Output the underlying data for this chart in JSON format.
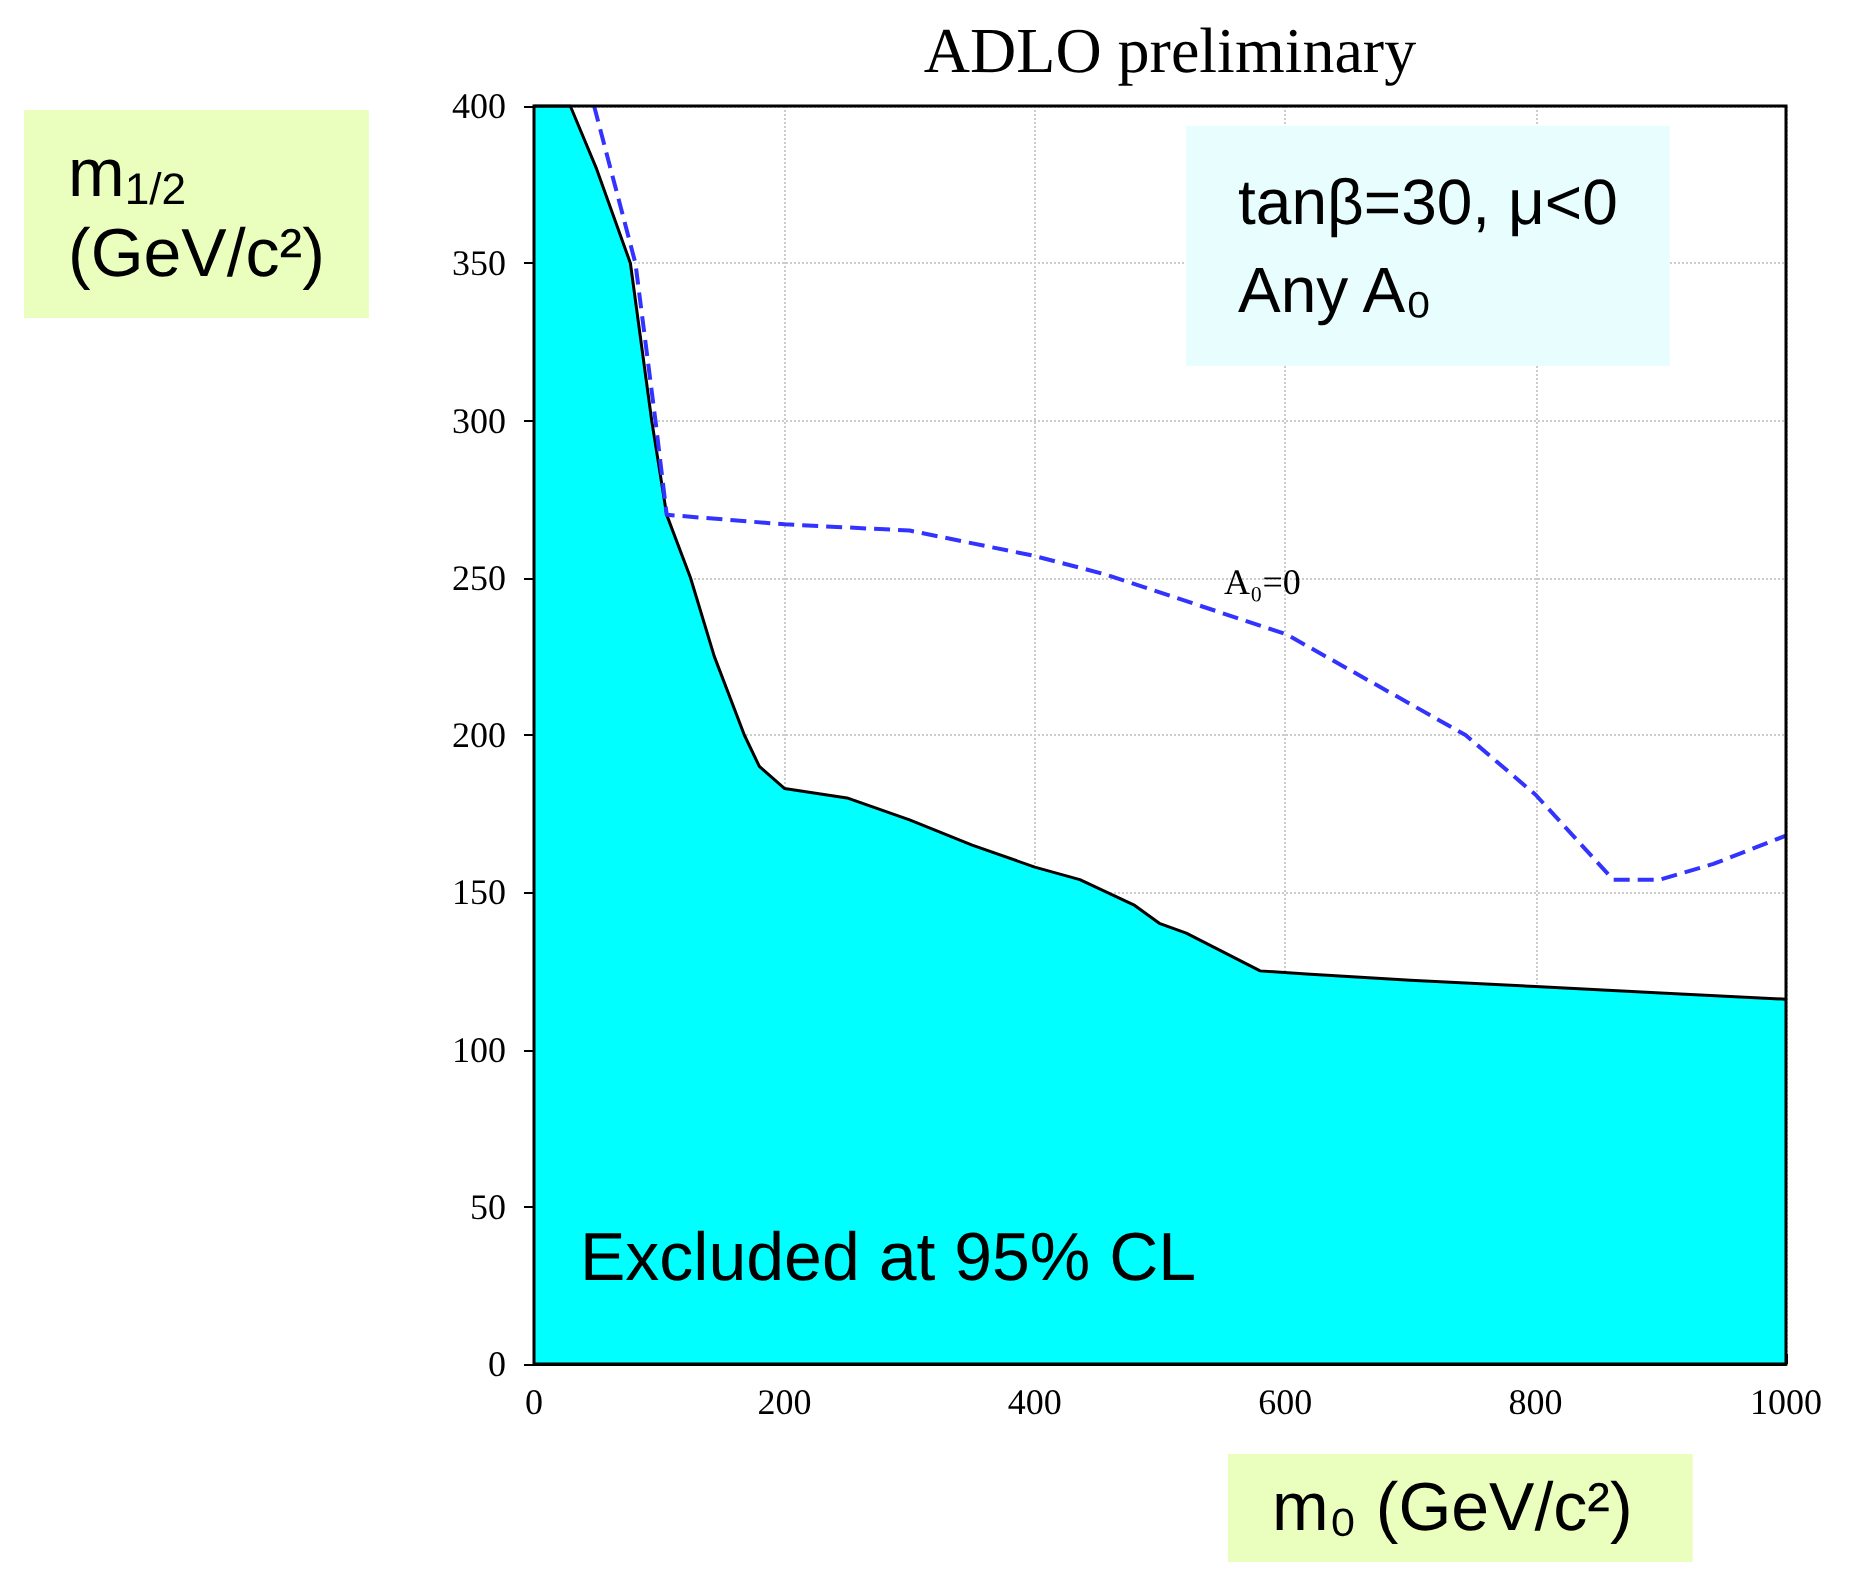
{
  "chart_data": {
    "type": "area",
    "title": "ADLO preliminary",
    "xlabel": "m₀ (GeV/c²)",
    "ylabel": "m$_{1/2}$ (GeV/c²)",
    "annotations": [
      "tanβ=30, μ<0",
      "Any A₀",
      "Excluded at 95% CL"
    ],
    "series": [
      {
        "color": "#00ffff",
        "x": [
          0,
          29,
          50,
          77,
          94,
          106,
          125,
          144,
          168,
          180,
          200,
          250,
          300,
          350,
          400,
          436,
          479,
          500,
          521,
          580,
          617,
          700,
          800,
          900,
          1000
        ],
        "values": [
          400,
          400,
          380,
          350,
          300,
          270,
          250,
          225,
          200,
          190,
          183,
          180,
          173,
          165,
          158,
          154,
          146,
          140,
          137,
          125,
          124,
          122,
          120,
          118,
          116
        ]
      },
      {
        "type": "line",
        "name": "A₀=0",
        "color": "#3333ff",
        "line_style": "dashed",
        "x": [
          48,
          81,
          97,
          106,
          200,
          300,
          399,
          457,
          601,
          744,
          800,
          862,
          899,
          942,
          1000
        ],
        "values": [
          400,
          350,
          300,
          270,
          267,
          265,
          257,
          251,
          232,
          200,
          181,
          154,
          154,
          159,
          168
        ]
      }
    ],
    "xlim": [
      0,
      1000
    ],
    "ylim": [
      0,
      400
    ],
    "xticks": [
      0,
      200,
      400,
      600,
      800,
      {
        "value": 1000,
        "label": "1000"
      }
    ],
    "yticks": [
      0,
      50,
      100,
      150,
      200,
      250,
      300,
      350,
      400
    ],
    "grid": true,
    "marker": "none"
  }
}
